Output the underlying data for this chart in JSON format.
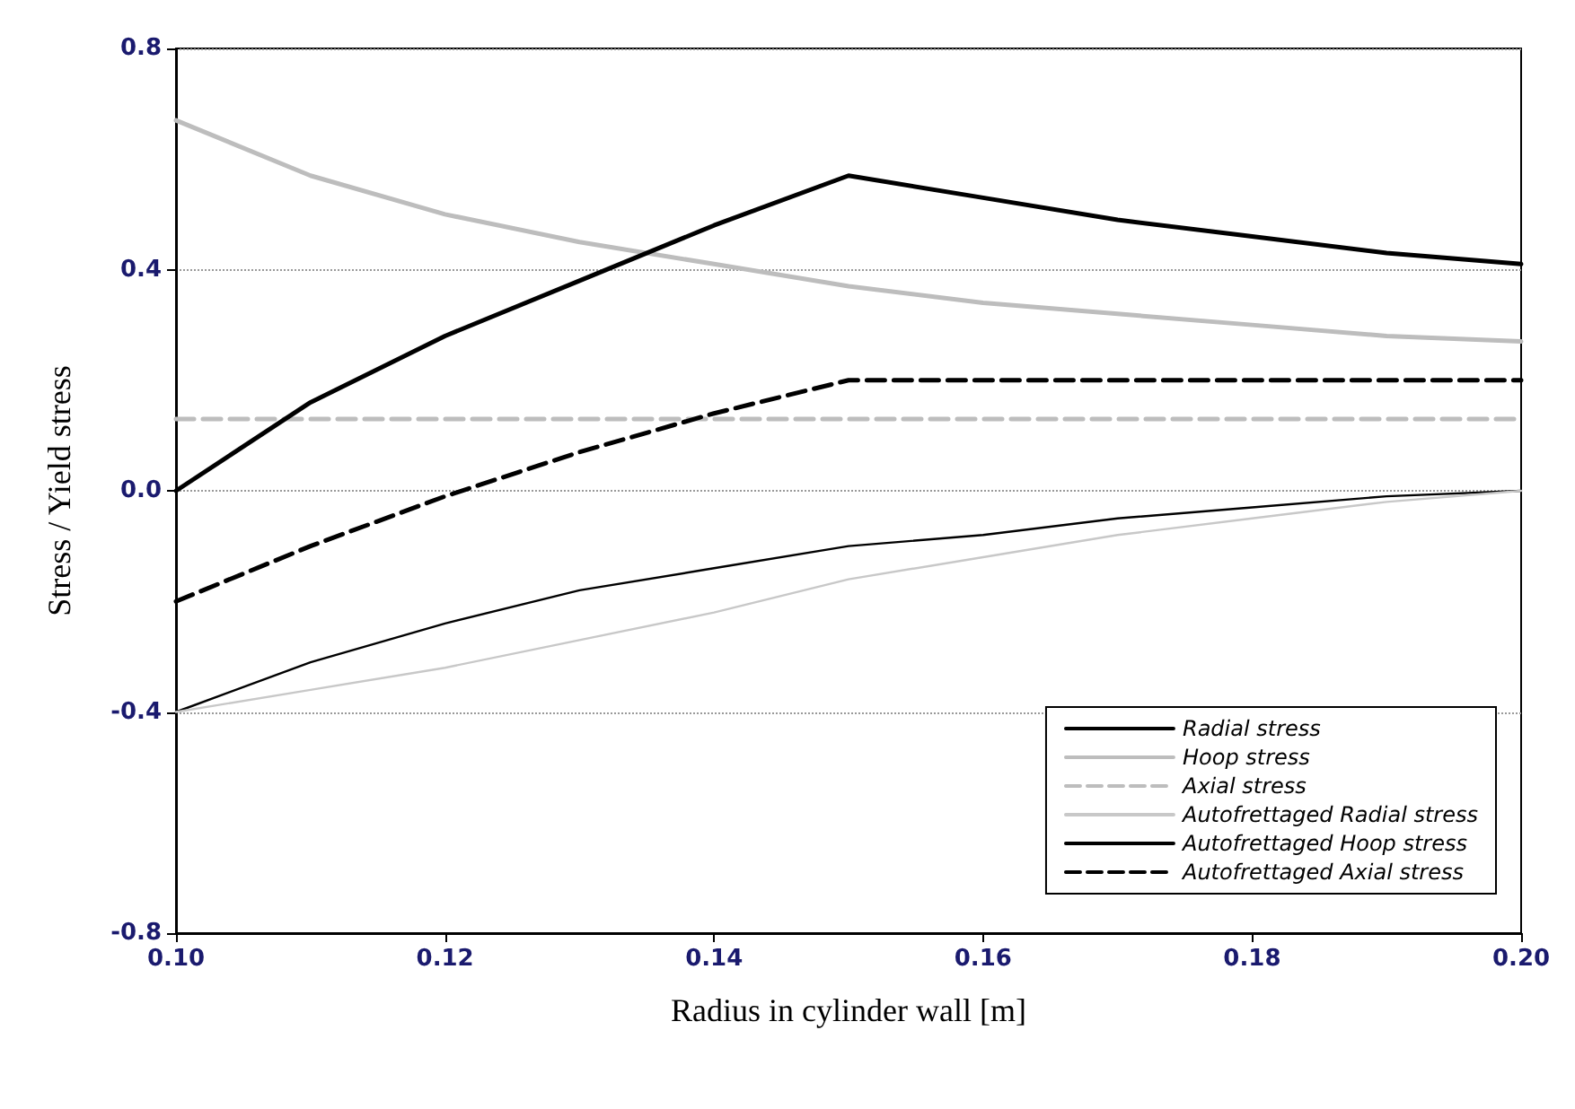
{
  "chart_data": {
    "type": "line",
    "xlabel": "Radius in cylinder wall [m]",
    "ylabel": "Stress / Yield stress",
    "x": [
      0.1,
      0.11,
      0.12,
      0.13,
      0.14,
      0.15,
      0.16,
      0.17,
      0.18,
      0.19,
      0.2
    ],
    "xlim": [
      0.1,
      0.2
    ],
    "xticks": [
      {
        "value": 0.1,
        "label": "0.10"
      },
      {
        "value": 0.12,
        "label": "0.12"
      },
      {
        "value": 0.14,
        "label": "0.14"
      },
      {
        "value": 0.16,
        "label": "0.16"
      },
      {
        "value": 0.18,
        "label": "0.18"
      },
      {
        "value": 0.2,
        "label": "0.20"
      }
    ],
    "ylim": [
      -0.8,
      0.8
    ],
    "yticks": [
      {
        "value": -0.8,
        "label": "-0.8"
      },
      {
        "value": -0.4,
        "label": "-0.4"
      },
      {
        "value": 0,
        "label": "0.0"
      },
      {
        "value": 0.4,
        "label": "0.4"
      },
      {
        "value": 0.8,
        "label": "0.8"
      }
    ],
    "grid": "y",
    "legend": "bottom right",
    "marker": "none",
    "series": [
      {
        "name": "Radial stress",
        "color": "#000000",
        "line_style": "solid",
        "values": [
          -0.4,
          -0.31,
          -0.24,
          -0.18,
          -0.14,
          -0.1,
          -0.08,
          -0.05,
          -0.03,
          -0.01,
          0.0
        ]
      },
      {
        "name": "Hoop stress",
        "color": "#bdbdbd",
        "line_style": "solid",
        "values": [
          0.67,
          0.57,
          0.5,
          0.45,
          0.41,
          0.37,
          0.34,
          0.32,
          0.3,
          0.28,
          0.27
        ]
      },
      {
        "name": "Axial stress",
        "color": "#bdbdbd",
        "line_style": "dashed",
        "values": [
          0.13,
          0.13,
          0.13,
          0.13,
          0.13,
          0.13,
          0.13,
          0.13,
          0.13,
          0.13,
          0.13
        ]
      },
      {
        "name": "Autofrettaged Radial stress",
        "color": "#c8c8c8",
        "line_style": "solid",
        "values": [
          -0.4,
          -0.36,
          -0.32,
          -0.27,
          -0.22,
          -0.16,
          -0.12,
          -0.08,
          -0.05,
          -0.02,
          0.0
        ]
      },
      {
        "name": "Autofrettaged Hoop stress",
        "color": "#000000",
        "line_style": "solid",
        "values": [
          0.0,
          0.16,
          0.28,
          0.38,
          0.48,
          0.57,
          0.53,
          0.49,
          0.46,
          0.43,
          0.41
        ]
      },
      {
        "name": "Autofrettaged Axial stress",
        "color": "#000000",
        "line_style": "dashed",
        "values": [
          -0.2,
          -0.1,
          -0.01,
          0.07,
          0.14,
          0.2,
          0.2,
          0.2,
          0.2,
          0.2,
          0.2
        ]
      }
    ]
  }
}
